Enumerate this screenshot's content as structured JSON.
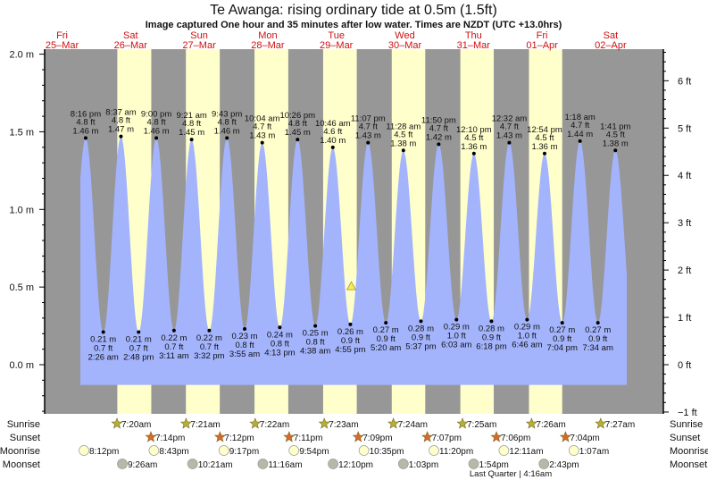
{
  "header": {
    "title": "Te Awanga: rising  ordinary tide at 0.5m (1.5ft)",
    "subtitle": "Image captured One hour and 35 minutes after low water. Times are NZDT (UTC +13.0hrs)"
  },
  "colors": {
    "night": "#979797",
    "day": "#ffffcc",
    "water": "#a3b4fd",
    "day_label": "#cc1111",
    "sunrise": "#b5b03a",
    "sunset": "#d86a2a",
    "moonrise": "#ffffcc",
    "moonset": "#b8b8a8"
  },
  "chart_data": {
    "type": "area",
    "title": "Te Awanga: rising  ordinary tide at 0.5m (1.5ft)",
    "days": [
      {
        "name": "Fri",
        "date": "25–Mar"
      },
      {
        "name": "Sat",
        "date": "26–Mar"
      },
      {
        "name": "Sun",
        "date": "27–Mar"
      },
      {
        "name": "Mon",
        "date": "28–Mar"
      },
      {
        "name": "Tue",
        "date": "29–Mar"
      },
      {
        "name": "Wed",
        "date": "30–Mar"
      },
      {
        "name": "Thu",
        "date": "31–Mar"
      },
      {
        "name": "Fri",
        "date": "01–Apr"
      },
      {
        "name": "Sat",
        "date": "02–Apr"
      }
    ],
    "y_left": {
      "unit": "m",
      "range": [
        -0.31,
        2.03
      ],
      "ticks": [
        "2.0 m",
        "1.5 m",
        "1.0 m",
        "0.5 m",
        "0.0 m"
      ],
      "tick_values": [
        2.0,
        1.5,
        1.0,
        0.5,
        0.0
      ]
    },
    "y_right": {
      "unit": "ft",
      "ticks": [
        "6 ft",
        "5 ft",
        "4 ft",
        "3 ft",
        "2 ft",
        "1 ft",
        "0 ft",
        "−1 ft"
      ],
      "tick_values": [
        6,
        5,
        4,
        3,
        2,
        1,
        0,
        -1
      ]
    },
    "current": {
      "day": 4,
      "time": "6:30 pm",
      "level_m": 0.5
    },
    "tides": [
      {
        "day": 0,
        "time": "8:16 pm",
        "type": "high",
        "m": "1.46 m",
        "ft": "4.8 ft"
      },
      {
        "day": 1,
        "time": "2:26 am",
        "type": "low",
        "m": "0.21 m",
        "ft": "0.7 ft"
      },
      {
        "day": 1,
        "time": "8:37 am",
        "type": "high",
        "m": "1.47 m",
        "ft": "4.8 ft"
      },
      {
        "day": 1,
        "time": "2:48 pm",
        "type": "low",
        "m": "0.21 m",
        "ft": "0.7 ft"
      },
      {
        "day": 1,
        "time": "9:00 pm",
        "type": "high",
        "m": "1.46 m",
        "ft": "4.8 ft"
      },
      {
        "day": 2,
        "time": "3:11 am",
        "type": "low",
        "m": "0.22 m",
        "ft": "0.7 ft"
      },
      {
        "day": 2,
        "time": "9:21 am",
        "type": "high",
        "m": "1.45 m",
        "ft": "4.8 ft"
      },
      {
        "day": 2,
        "time": "3:32 pm",
        "type": "low",
        "m": "0.22 m",
        "ft": "0.7 ft"
      },
      {
        "day": 2,
        "time": "9:43 pm",
        "type": "high",
        "m": "1.46 m",
        "ft": "4.8 ft"
      },
      {
        "day": 3,
        "time": "3:55 am",
        "type": "low",
        "m": "0.23 m",
        "ft": "0.8 ft"
      },
      {
        "day": 3,
        "time": "10:04 am",
        "type": "high",
        "m": "1.43 m",
        "ft": "4.7 ft"
      },
      {
        "day": 3,
        "time": "4:13 pm",
        "type": "low",
        "m": "0.24 m",
        "ft": "0.8 ft"
      },
      {
        "day": 3,
        "time": "10:26 pm",
        "type": "high",
        "m": "1.45 m",
        "ft": "4.8 ft"
      },
      {
        "day": 4,
        "time": "4:38 am",
        "type": "low",
        "m": "0.25 m",
        "ft": "0.8 ft"
      },
      {
        "day": 4,
        "time": "10:46 am",
        "type": "high",
        "m": "1.40 m",
        "ft": "4.6 ft"
      },
      {
        "day": 4,
        "time": "4:55 pm",
        "type": "low",
        "m": "0.26 m",
        "ft": "0.9 ft"
      },
      {
        "day": 4,
        "time": "11:07 pm",
        "type": "high",
        "m": "1.43 m",
        "ft": "4.7 ft"
      },
      {
        "day": 5,
        "time": "5:20 am",
        "type": "low",
        "m": "0.27 m",
        "ft": "0.9 ft"
      },
      {
        "day": 5,
        "time": "11:28 am",
        "type": "high",
        "m": "1.38 m",
        "ft": "4.5 ft"
      },
      {
        "day": 5,
        "time": "5:37 pm",
        "type": "low",
        "m": "0.28 m",
        "ft": "0.9 ft"
      },
      {
        "day": 5,
        "time": "11:50 pm",
        "type": "high",
        "m": "1.42 m",
        "ft": "4.7 ft"
      },
      {
        "day": 6,
        "time": "6:03 am",
        "type": "low",
        "m": "0.29 m",
        "ft": "1.0 ft"
      },
      {
        "day": 6,
        "time": "12:10 pm",
        "type": "high",
        "m": "1.36 m",
        "ft": "4.5 ft"
      },
      {
        "day": 6,
        "time": "6:18 pm",
        "type": "low",
        "m": "0.28 m",
        "ft": "0.9 ft"
      },
      {
        "day": 7,
        "time": "12:32 am",
        "type": "high",
        "m": "1.43 m",
        "ft": "4.7 ft"
      },
      {
        "day": 7,
        "time": "6:46 am",
        "type": "low",
        "m": "0.29 m",
        "ft": "1.0 ft"
      },
      {
        "day": 7,
        "time": "12:54 pm",
        "type": "high",
        "m": "1.36 m",
        "ft": "4.5 ft"
      },
      {
        "day": 7,
        "time": "7:04 pm",
        "type": "low",
        "m": "0.27 m",
        "ft": "0.9 ft"
      },
      {
        "day": 8,
        "time": "1:18 am",
        "type": "high",
        "m": "1.44 m",
        "ft": "4.7 ft"
      },
      {
        "day": 8,
        "time": "7:34 am",
        "type": "low",
        "m": "0.27 m",
        "ft": "0.9 ft"
      },
      {
        "day": 8,
        "time": "1:41 pm",
        "type": "high",
        "m": "1.38 m",
        "ft": "4.5 ft"
      }
    ]
  },
  "astro": {
    "rows": [
      {
        "label": "Sunrise",
        "kind": "sunrise",
        "first_day": 1,
        "events": [
          "7:20am",
          "7:21am",
          "7:22am",
          "7:23am",
          "7:24am",
          "7:25am",
          "7:26am",
          "7:27am"
        ]
      },
      {
        "label": "Sunset",
        "kind": "sunset",
        "first_day": 1,
        "events": [
          "7:14pm",
          "7:12pm",
          "7:11pm",
          "7:09pm",
          "7:07pm",
          "7:06pm",
          "7:04pm"
        ]
      },
      {
        "label": "Moonrise",
        "kind": "moonrise",
        "first_day": 0,
        "events": [
          "8:12pm",
          "8:43pm",
          "9:17pm",
          "9:54pm",
          "10:35pm",
          "11:20pm",
          "12:11am",
          "1:07am"
        ]
      },
      {
        "label": "Moonset",
        "kind": "moonset",
        "first_day": 1,
        "events": [
          "9:26am",
          "10:21am",
          "11:16am",
          "12:10pm",
          "1:03pm",
          "1:54pm",
          "2:43pm"
        ]
      }
    ],
    "moon_phase": "Last Quarter | 4:16am"
  }
}
